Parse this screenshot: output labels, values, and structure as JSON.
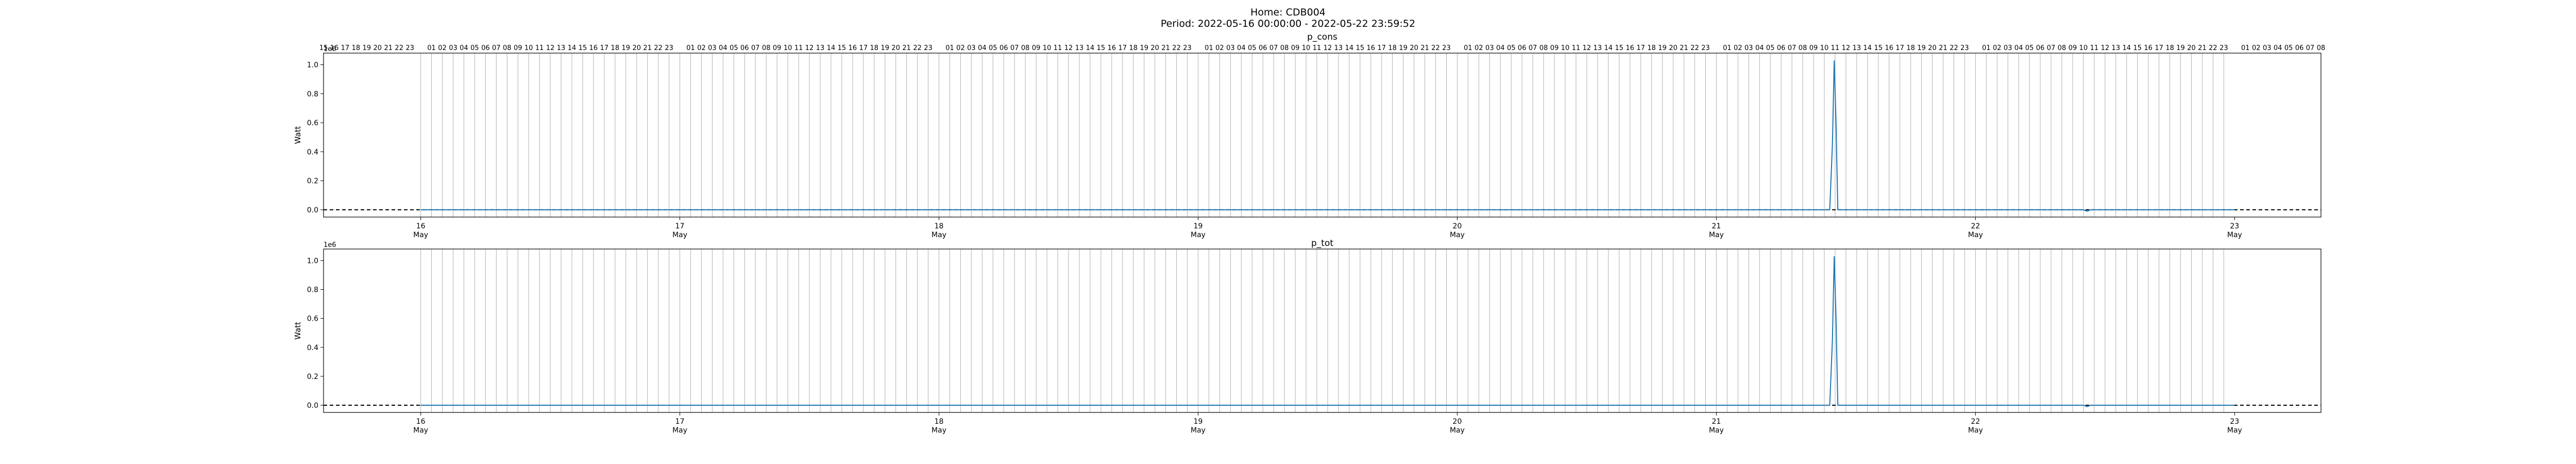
{
  "figure": {
    "title_line1": "Home: CDB004",
    "title_line2": "Period: 2022-05-16 00:00:00 - 2022-05-22 23:59:52"
  },
  "colors": {
    "series": "#1f77b4",
    "hour_lines": "#b0b0b0",
    "zero_line": "#000000"
  },
  "chart_data": [
    {
      "type": "line",
      "title": "p_cons",
      "ylabel": "Watt",
      "scale_label": "1e6",
      "xlim": [
        "2022-05-15 15:00",
        "2022-05-23 08:00"
      ],
      "ylim": [
        -0.05,
        1.08
      ],
      "yticks": [
        0.0,
        0.2,
        0.4,
        0.6,
        0.8,
        1.0
      ],
      "ytick_labels": [
        "0.0",
        "0.2",
        "0.4",
        "0.6",
        "0.8",
        "1.0"
      ],
      "day_ticks": [
        {
          "day": "16",
          "month": "May"
        },
        {
          "day": "17",
          "month": "May"
        },
        {
          "day": "18",
          "month": "May"
        },
        {
          "day": "19",
          "month": "May"
        },
        {
          "day": "20",
          "month": "May"
        },
        {
          "day": "21",
          "month": "May"
        },
        {
          "day": "22",
          "month": "May"
        },
        {
          "day": "23",
          "month": "May"
        }
      ],
      "hour_grid": "vertical gray line at every hour; top labels 01-23 each day",
      "zero_reference": "dashed black line at y = 0",
      "series": [
        {
          "points": [
            [
              "2022-05-16 00:00",
              0.0
            ],
            [
              "2022-05-21 10:30",
              0.0
            ],
            [
              "2022-05-21 10:45",
              0.45
            ],
            [
              "2022-05-21 10:55",
              1.03
            ],
            [
              "2022-05-21 11:05",
              0.6
            ],
            [
              "2022-05-21 11:15",
              0.0
            ],
            [
              "2022-05-22 10:00",
              0.0
            ],
            [
              "2022-05-22 10:20",
              -0.01
            ],
            [
              "2022-05-22 10:40",
              0.0
            ],
            [
              "2022-05-22 23:59",
              0.0
            ]
          ]
        }
      ]
    },
    {
      "type": "line",
      "title": "p_tot",
      "ylabel": "Watt",
      "scale_label": "1e6",
      "xlim": [
        "2022-05-15 15:00",
        "2022-05-23 08:00"
      ],
      "ylim": [
        -0.05,
        1.08
      ],
      "yticks": [
        0.0,
        0.2,
        0.4,
        0.6,
        0.8,
        1.0
      ],
      "ytick_labels": [
        "0.0",
        "0.2",
        "0.4",
        "0.6",
        "0.8",
        "1.0"
      ],
      "day_ticks": [
        {
          "day": "16",
          "month": "May"
        },
        {
          "day": "17",
          "month": "May"
        },
        {
          "day": "18",
          "month": "May"
        },
        {
          "day": "19",
          "month": "May"
        },
        {
          "day": "20",
          "month": "May"
        },
        {
          "day": "21",
          "month": "May"
        },
        {
          "day": "22",
          "month": "May"
        },
        {
          "day": "23",
          "month": "May"
        }
      ],
      "zero_reference": "dashed black line at y = 0",
      "series": [
        {
          "points": [
            [
              "2022-05-16 00:00",
              0.0
            ],
            [
              "2022-05-21 10:30",
              0.0
            ],
            [
              "2022-05-21 10:45",
              0.45
            ],
            [
              "2022-05-21 10:55",
              1.03
            ],
            [
              "2022-05-21 11:05",
              0.6
            ],
            [
              "2022-05-21 11:15",
              0.0
            ],
            [
              "2022-05-22 10:00",
              0.0
            ],
            [
              "2022-05-22 10:20",
              -0.01
            ],
            [
              "2022-05-22 10:40",
              0.0
            ],
            [
              "2022-05-22 23:59",
              0.0
            ]
          ]
        }
      ]
    }
  ]
}
